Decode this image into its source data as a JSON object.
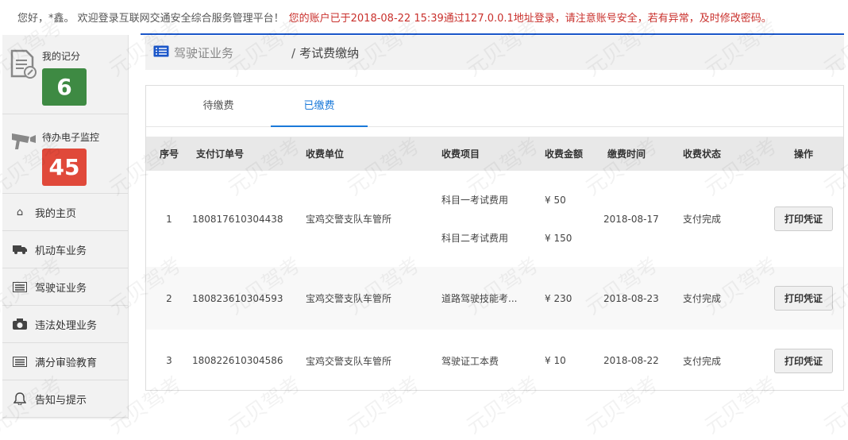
{
  "topbar": {
    "greeting": "您好，*鑫。 欢迎登录互联网交通安全综合服务管理平台！",
    "warning": "您的账户已于2018-08-22 15:39通过127.0.0.1地址登录，请注意账号安全，若有异常，及时修改密码。"
  },
  "sidebar": {
    "score": {
      "label": "我的记分",
      "value": "6",
      "color": "#3e8a43"
    },
    "monitor": {
      "label": "待办电子监控",
      "value": "45",
      "color": "#e0493a"
    },
    "items": [
      {
        "label": "我的主页",
        "icon": "home-icon"
      },
      {
        "label": "机动车业务",
        "icon": "truck-icon"
      },
      {
        "label": "驾驶证业务",
        "icon": "id-card-icon"
      },
      {
        "label": "违法处理业务",
        "icon": "camera-icon"
      },
      {
        "label": "满分审验教育",
        "icon": "id-card-icon"
      },
      {
        "label": "告知与提示",
        "icon": "bell-icon"
      }
    ]
  },
  "breadcrumb": {
    "parent": "驾驶证业务",
    "separator": "/",
    "current": "考试费缴纳"
  },
  "tabs": [
    {
      "label": "待缴费",
      "active": false
    },
    {
      "label": "已缴费",
      "active": true
    }
  ],
  "table": {
    "headers": [
      "序号",
      "支付订单号",
      "收费单位",
      "收费项目",
      "收费金额",
      "缴费时间",
      "收费状态",
      "操作"
    ],
    "rows": [
      {
        "no": "1",
        "order": "180817610304438",
        "unit": "宝鸡交警支队车管所",
        "items": [
          {
            "name": "科目一考试费用",
            "amount": "¥ 50"
          },
          {
            "name": "科目二考试费用",
            "amount": "¥ 150"
          }
        ],
        "time": "2018-08-17",
        "status": "支付完成",
        "action": "打印凭证"
      },
      {
        "no": "2",
        "order": "180823610304593",
        "unit": "宝鸡交警支队车管所",
        "items": [
          {
            "name": "道路驾驶技能考...",
            "amount": "¥ 230"
          }
        ],
        "time": "2018-08-23",
        "status": "支付完成",
        "action": "打印凭证"
      },
      {
        "no": "3",
        "order": "180822610304586",
        "unit": "宝鸡交警支队车管所",
        "items": [
          {
            "name": "驾驶证工本费",
            "amount": "¥ 10"
          }
        ],
        "time": "2018-08-22",
        "status": "支付完成",
        "action": "打印凭证"
      }
    ]
  },
  "watermark": "元贝驾考"
}
